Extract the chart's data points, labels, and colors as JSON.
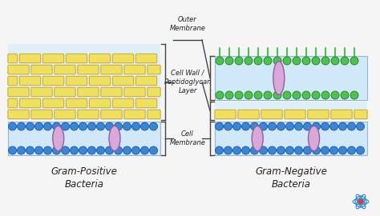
{
  "bg_color": "#f5f5f5",
  "yellow_brick": "#f0e060",
  "yellow_brick_border": "#c8a830",
  "blue_circle": "#3a85d4",
  "blue_circle_border": "#1a55aa",
  "membrane_bg": "#d0e8f8",
  "membrane_border": "#90b8d8",
  "protein_fill": "#d8a8d8",
  "protein_border": "#9060a0",
  "green_circle": "#50c050",
  "green_circle_border": "#208020",
  "bracket_color": "#444444",
  "text_color": "#222222",
  "label_left": "Gram-Positive\nBacteria",
  "label_right": "Gram-Negative\nBacteria",
  "label_outer": "Outer\nMembrane",
  "label_cellwall": "Cell Wall /\nPeptidoglycan\nLayer",
  "label_cellmem": "Cell\nMembrane",
  "brick_bg": "#e0f0f8"
}
